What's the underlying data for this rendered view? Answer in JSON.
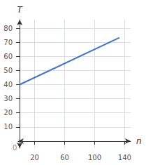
{
  "chart_data": {
    "type": "line",
    "x": [
      0,
      133
    ],
    "values": [
      40,
      73.25
    ],
    "color": "#4472C4",
    "xlim": [
      -2,
      148
    ],
    "ylim": [
      -5,
      86
    ],
    "xticks": [
      20,
      60,
      100,
      140
    ],
    "yticks": [
      10,
      20,
      30,
      40,
      50,
      60,
      70,
      80
    ],
    "xlabel": "n",
    "ylabel": "T",
    "annotations": [
      {
        "text": "0"
      }
    ],
    "grid": true
  }
}
